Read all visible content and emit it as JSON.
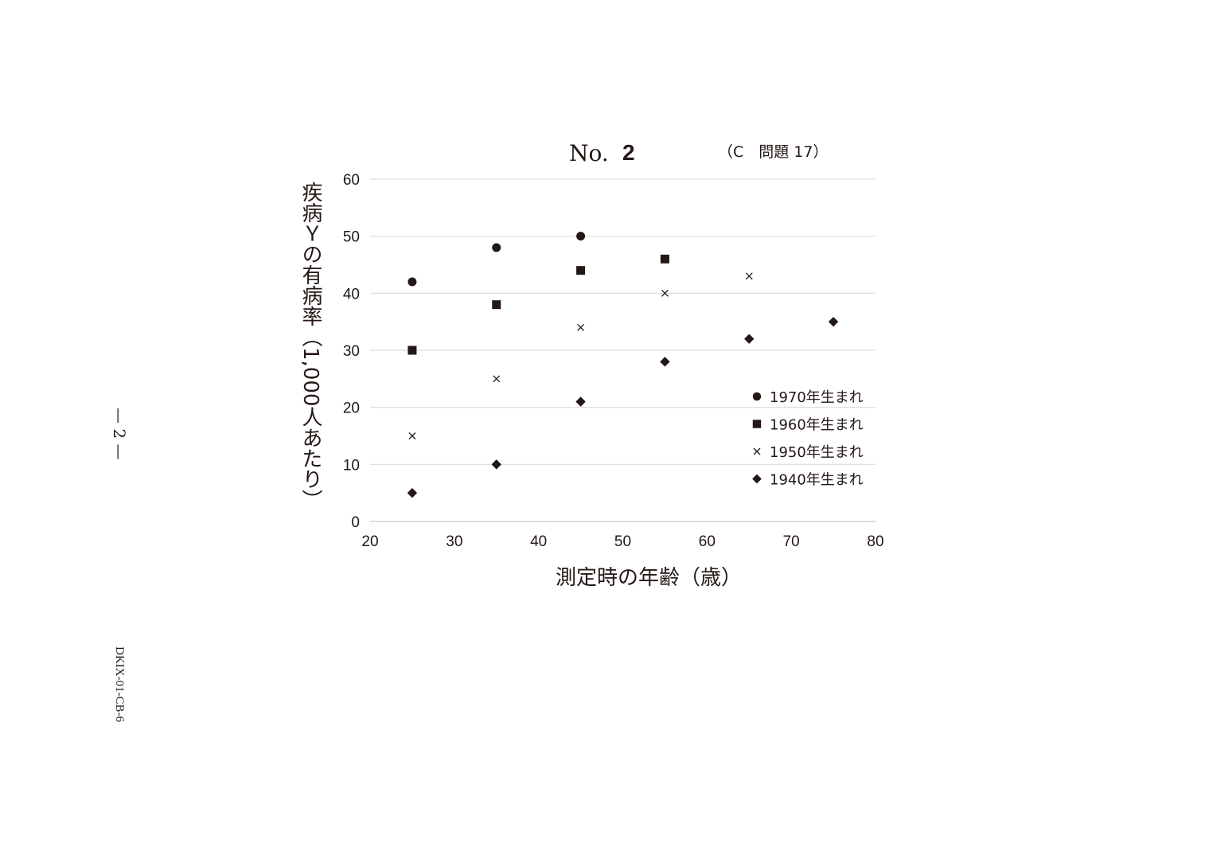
{
  "page": {
    "title_prefix": "No.",
    "title_number": "2",
    "title_ref": "（C　問題 17）",
    "side_page": "— 2 —",
    "side_code": "DKIX-01-CB-6"
  },
  "chart_data": {
    "type": "scatter",
    "xlabel": "測定時の年齢（歳）",
    "ylabel": "疾病Ｙの有病率（1,000人あたり）",
    "xlim": [
      20,
      80
    ],
    "ylim": [
      0,
      60
    ],
    "xticks": [
      20,
      30,
      40,
      50,
      60,
      70,
      80
    ],
    "yticks": [
      0,
      10,
      20,
      30,
      40,
      50,
      60
    ],
    "grid": "horizontal",
    "legend_position": "bottom-right",
    "colors": {
      "marks": "#231815",
      "grid": "#dcdcdc"
    },
    "series": [
      {
        "name": "1970年生まれ",
        "marker": "circle",
        "x": [
          25,
          35,
          45
        ],
        "y": [
          42,
          48,
          50
        ]
      },
      {
        "name": "1960年生まれ",
        "marker": "square",
        "x": [
          25,
          35,
          45,
          55
        ],
        "y": [
          30,
          38,
          44,
          46
        ]
      },
      {
        "name": "1950年生まれ",
        "marker": "cross",
        "x": [
          25,
          35,
          45,
          55,
          65
        ],
        "y": [
          15,
          25,
          34,
          40,
          43
        ]
      },
      {
        "name": "1940年生まれ",
        "marker": "diamond",
        "x": [
          25,
          35,
          45,
          55,
          65,
          75
        ],
        "y": [
          5,
          10,
          21,
          28,
          32,
          35
        ]
      }
    ]
  }
}
